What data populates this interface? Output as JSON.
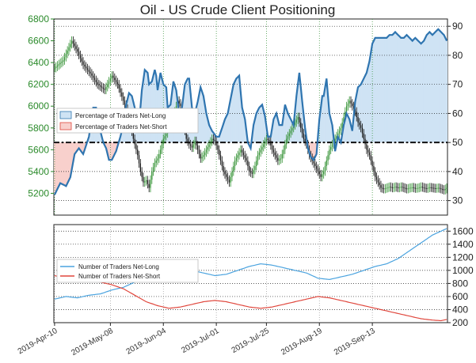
{
  "chart_data": [
    {
      "type": "candlestick+line",
      "title": "Oil - US Crude Client Positioning",
      "left_axis": {
        "ylim": [
          5000,
          6800
        ],
        "ticks": [
          5200,
          5400,
          5600,
          5800,
          6000,
          6200,
          6400,
          6600,
          6800
        ]
      },
      "right_axis": {
        "ylim": [
          25,
          92.5
        ],
        "ticks": [
          30,
          40,
          50,
          60,
          70,
          80,
          90
        ]
      },
      "reference_line_right": 50,
      "legend": {
        "position": "left",
        "entries": [
          "Percentage of Traders Net-Long",
          "Percentage of Traders Net-Short"
        ]
      },
      "colors": {
        "net_long": "#2f75b0",
        "net_short": "#e0473d",
        "bull_candle": "#2f8f2f",
        "bear_candle": "#111111",
        "long_fill": "#cfe3f4",
        "short_fill": "#f8d0cc"
      },
      "pct_net_long_keypoints": [
        [
          0,
          32
        ],
        [
          4,
          36
        ],
        [
          8,
          35
        ],
        [
          11,
          38
        ],
        [
          14,
          46
        ],
        [
          17,
          48
        ],
        [
          20,
          46
        ],
        [
          24,
          52
        ],
        [
          27,
          62
        ],
        [
          29,
          62
        ],
        [
          31,
          56
        ],
        [
          34,
          50
        ],
        [
          36,
          48
        ],
        [
          38,
          44
        ],
        [
          40,
          44
        ],
        [
          43,
          47
        ],
        [
          46,
          52
        ],
        [
          48,
          56
        ],
        [
          50,
          63
        ],
        [
          52,
          67
        ],
        [
          54,
          66
        ],
        [
          56,
          62
        ],
        [
          58,
          58
        ],
        [
          59,
          56
        ],
        [
          61,
          68
        ],
        [
          63,
          75
        ],
        [
          65,
          74
        ],
        [
          66,
          70
        ],
        [
          68,
          71
        ],
        [
          70,
          75
        ],
        [
          71,
          73
        ],
        [
          72,
          68
        ],
        [
          74,
          74
        ],
        [
          76,
          70
        ],
        [
          78,
          69
        ],
        [
          79,
          62
        ],
        [
          81,
          63
        ],
        [
          83,
          71
        ],
        [
          85,
          68
        ],
        [
          87,
          60
        ],
        [
          89,
          62
        ],
        [
          91,
          70
        ],
        [
          93,
          72
        ],
        [
          94,
          72
        ],
        [
          96,
          62
        ],
        [
          98,
          60
        ],
        [
          100,
          64
        ],
        [
          102,
          69
        ],
        [
          104,
          66
        ],
        [
          106,
          60
        ],
        [
          108,
          56
        ],
        [
          110,
          54
        ],
        [
          113,
          52
        ],
        [
          115,
          52
        ],
        [
          117,
          55
        ],
        [
          119,
          58
        ],
        [
          121,
          60
        ],
        [
          123,
          65
        ],
        [
          125,
          70
        ],
        [
          127,
          72
        ],
        [
          129,
          73
        ],
        [
          131,
          62
        ],
        [
          133,
          58
        ],
        [
          135,
          50
        ],
        [
          137,
          48
        ],
        [
          139,
          56
        ],
        [
          141,
          60
        ],
        [
          143,
          62
        ],
        [
          145,
          63
        ],
        [
          147,
          59
        ],
        [
          149,
          52
        ],
        [
          151,
          52
        ],
        [
          153,
          58
        ],
        [
          155,
          60
        ],
        [
          157,
          56
        ],
        [
          159,
          56
        ],
        [
          161,
          63
        ],
        [
          163,
          60
        ],
        [
          165,
          58
        ],
        [
          167,
          56
        ],
        [
          169,
          66
        ],
        [
          171,
          74
        ],
        [
          173,
          64
        ],
        [
          175,
          55
        ],
        [
          177,
          48
        ],
        [
          179,
          45
        ],
        [
          181,
          44
        ],
        [
          183,
          46
        ],
        [
          185,
          58
        ],
        [
          187,
          66
        ],
        [
          188,
          66
        ],
        [
          190,
          72
        ],
        [
          192,
          60
        ],
        [
          194,
          56
        ],
        [
          196,
          47
        ],
        [
          198,
          52
        ],
        [
          200,
          50
        ],
        [
          202,
          56
        ],
        [
          204,
          60
        ],
        [
          206,
          58
        ],
        [
          208,
          54
        ],
        [
          210,
          64
        ],
        [
          212,
          69
        ],
        [
          214,
          70
        ],
        [
          216,
          72
        ],
        [
          218,
          74
        ],
        [
          220,
          78
        ],
        [
          222,
          84
        ],
        [
          224,
          86
        ],
        [
          226,
          86
        ],
        [
          228,
          86
        ],
        [
          230,
          86
        ],
        [
          232,
          86
        ],
        [
          234,
          87
        ],
        [
          236,
          87
        ],
        [
          238,
          88
        ],
        [
          240,
          87
        ],
        [
          242,
          86
        ],
        [
          244,
          86
        ],
        [
          246,
          87
        ],
        [
          248,
          86
        ],
        [
          250,
          85
        ],
        [
          252,
          86
        ],
        [
          254,
          85
        ],
        [
          256,
          84
        ],
        [
          258,
          85
        ],
        [
          260,
          87
        ],
        [
          262,
          88
        ],
        [
          264,
          87
        ],
        [
          266,
          88
        ],
        [
          268,
          89
        ],
        [
          270,
          88
        ],
        [
          272,
          87
        ],
        [
          274,
          85
        ]
      ],
      "candle_close_keypoints": [
        [
          0,
          6350
        ],
        [
          6,
          6420
        ],
        [
          12,
          6600
        ],
        [
          16,
          6500
        ],
        [
          20,
          6380
        ],
        [
          25,
          6300
        ],
        [
          30,
          6200
        ],
        [
          35,
          6150
        ],
        [
          40,
          6280
        ],
        [
          44,
          6200
        ],
        [
          48,
          6050
        ],
        [
          52,
          5900
        ],
        [
          55,
          5700
        ],
        [
          58,
          5550
        ],
        [
          60,
          5400
        ],
        [
          62,
          5300
        ],
        [
          64,
          5320
        ],
        [
          66,
          5250
        ],
        [
          68,
          5400
        ],
        [
          70,
          5480
        ],
        [
          72,
          5520
        ],
        [
          74,
          5600
        ],
        [
          76,
          5700
        ],
        [
          78,
          5750
        ],
        [
          80,
          5850
        ],
        [
          82,
          5900
        ],
        [
          84,
          5950
        ],
        [
          86,
          6050
        ],
        [
          88,
          6000
        ],
        [
          90,
          5850
        ],
        [
          92,
          5700
        ],
        [
          94,
          5650
        ],
        [
          96,
          5620
        ],
        [
          98,
          5680
        ],
        [
          100,
          5600
        ],
        [
          102,
          5520
        ],
        [
          104,
          5550
        ],
        [
          106,
          5600
        ],
        [
          108,
          5650
        ],
        [
          110,
          5700
        ],
        [
          112,
          5680
        ],
        [
          114,
          5600
        ],
        [
          116,
          5500
        ],
        [
          118,
          5400
        ],
        [
          120,
          5350
        ],
        [
          122,
          5300
        ],
        [
          124,
          5400
        ],
        [
          126,
          5500
        ],
        [
          128,
          5550
        ],
        [
          130,
          5600
        ],
        [
          132,
          5550
        ],
        [
          134,
          5500
        ],
        [
          136,
          5400
        ],
        [
          138,
          5380
        ],
        [
          140,
          5450
        ],
        [
          142,
          5550
        ],
        [
          144,
          5600
        ],
        [
          146,
          5650
        ],
        [
          148,
          5700
        ],
        [
          150,
          5680
        ],
        [
          152,
          5600
        ],
        [
          154,
          5550
        ],
        [
          156,
          5500
        ],
        [
          158,
          5520
        ],
        [
          160,
          5600
        ],
        [
          162,
          5700
        ],
        [
          164,
          5750
        ],
        [
          166,
          5800
        ],
        [
          168,
          5850
        ],
        [
          170,
          5900
        ],
        [
          172,
          5800
        ],
        [
          174,
          5700
        ],
        [
          176,
          5650
        ],
        [
          178,
          5550
        ],
        [
          180,
          5500
        ],
        [
          182,
          5450
        ],
        [
          184,
          5400
        ],
        [
          186,
          5350
        ],
        [
          188,
          5400
        ],
        [
          190,
          5500
        ],
        [
          192,
          5600
        ],
        [
          194,
          5650
        ],
        [
          196,
          5700
        ],
        [
          198,
          5750
        ],
        [
          200,
          5800
        ],
        [
          202,
          5900
        ],
        [
          204,
          6000
        ],
        [
          206,
          6050
        ],
        [
          208,
          6000
        ],
        [
          210,
          5950
        ],
        [
          212,
          5850
        ],
        [
          214,
          5800
        ],
        [
          216,
          5700
        ],
        [
          218,
          5600
        ],
        [
          220,
          5550
        ],
        [
          222,
          5450
        ],
        [
          224,
          5350
        ],
        [
          226,
          5300
        ],
        [
          228,
          5250
        ],
        [
          230,
          5240
        ],
        [
          232,
          5250
        ],
        [
          234,
          5260
        ],
        [
          236,
          5250
        ],
        [
          238,
          5260
        ],
        [
          240,
          5250
        ],
        [
          242,
          5260
        ],
        [
          244,
          5250
        ],
        [
          246,
          5240
        ],
        [
          248,
          5250
        ],
        [
          250,
          5255
        ],
        [
          252,
          5245
        ],
        [
          254,
          5250
        ],
        [
          256,
          5260
        ],
        [
          258,
          5250
        ],
        [
          260,
          5245
        ],
        [
          262,
          5255
        ],
        [
          264,
          5250
        ],
        [
          266,
          5245
        ],
        [
          268,
          5250
        ],
        [
          270,
          5240
        ],
        [
          272,
          5230
        ],
        [
          274,
          5250
        ]
      ]
    },
    {
      "type": "line",
      "ylim": [
        200,
        1700
      ],
      "ticks": [
        200,
        400,
        600,
        800,
        1000,
        1200,
        1400,
        1600
      ],
      "legend": {
        "position": "left",
        "entries": [
          "Number of Traders Net-Long",
          "Number of Traders Net-Short"
        ]
      },
      "x_tick_labels": [
        "2019-Apr-10",
        "2019-May-08",
        "2019-Jun-04",
        "2019-Jul-01",
        "2019-Jul-25",
        "2019-Aug-19",
        "2019-Sep-13"
      ],
      "series": [
        {
          "name": "Number of Traders Net-Long",
          "color": "#4aa3df",
          "keypoints": [
            [
              0,
              560
            ],
            [
              8,
              600
            ],
            [
              16,
              580
            ],
            [
              24,
              620
            ],
            [
              32,
              640
            ],
            [
              40,
              700
            ],
            [
              48,
              740
            ],
            [
              56,
              820
            ],
            [
              64,
              900
            ],
            [
              72,
              1000
            ],
            [
              80,
              1080
            ],
            [
              88,
              1040
            ],
            [
              96,
              1000
            ],
            [
              104,
              960
            ],
            [
              112,
              920
            ],
            [
              120,
              940
            ],
            [
              128,
              1000
            ],
            [
              136,
              1060
            ],
            [
              144,
              1100
            ],
            [
              152,
              1080
            ],
            [
              160,
              1040
            ],
            [
              168,
              1000
            ],
            [
              176,
              960
            ],
            [
              184,
              880
            ],
            [
              192,
              860
            ],
            [
              200,
              900
            ],
            [
              208,
              940
            ],
            [
              216,
              1000
            ],
            [
              224,
              1060
            ],
            [
              232,
              1100
            ],
            [
              240,
              1180
            ],
            [
              248,
              1300
            ],
            [
              256,
              1420
            ],
            [
              264,
              1540
            ],
            [
              270,
              1600
            ],
            [
              274,
              1640
            ]
          ]
        },
        {
          "name": "Number of Traders Net-Short",
          "color": "#e0473d",
          "keypoints": [
            [
              0,
              920
            ],
            [
              8,
              880
            ],
            [
              16,
              860
            ],
            [
              24,
              840
            ],
            [
              32,
              820
            ],
            [
              40,
              780
            ],
            [
              48,
              720
            ],
            [
              56,
              620
            ],
            [
              64,
              520
            ],
            [
              72,
              460
            ],
            [
              80,
              420
            ],
            [
              88,
              440
            ],
            [
              96,
              480
            ],
            [
              104,
              520
            ],
            [
              112,
              540
            ],
            [
              120,
              520
            ],
            [
              128,
              480
            ],
            [
              136,
              440
            ],
            [
              144,
              420
            ],
            [
              152,
              440
            ],
            [
              160,
              480
            ],
            [
              168,
              520
            ],
            [
              176,
              560
            ],
            [
              184,
              600
            ],
            [
              192,
              580
            ],
            [
              200,
              540
            ],
            [
              208,
              500
            ],
            [
              216,
              460
            ],
            [
              224,
              420
            ],
            [
              232,
              380
            ],
            [
              240,
              340
            ],
            [
              248,
              300
            ],
            [
              256,
              260
            ],
            [
              264,
              240
            ],
            [
              270,
              230
            ],
            [
              274,
              250
            ]
          ]
        }
      ]
    }
  ]
}
